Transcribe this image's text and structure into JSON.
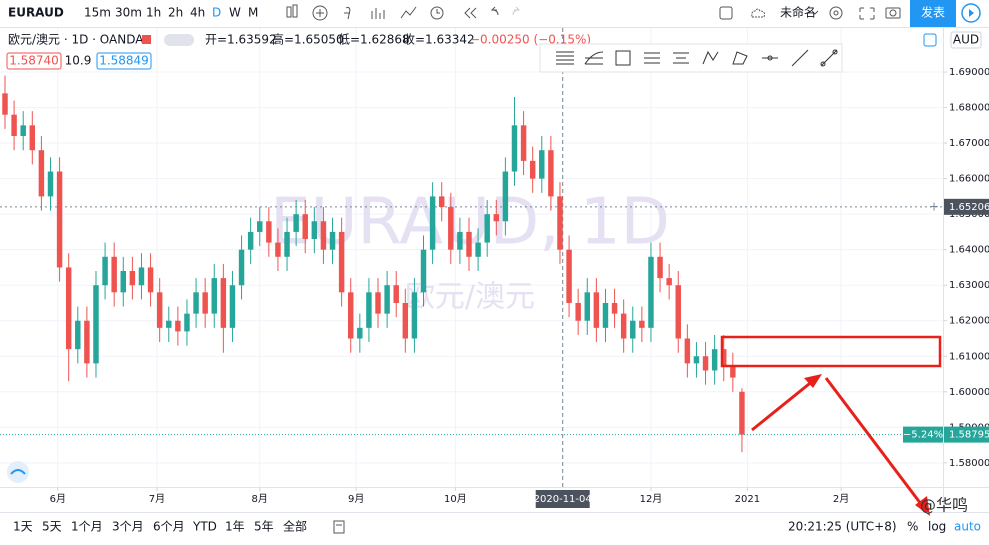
{
  "toolbar": {
    "symbol": "EURAUD",
    "intervals": [
      "15m",
      "30m",
      "1h",
      "2h",
      "4h",
      "D",
      "W",
      "M"
    ],
    "layout_name": "未命名",
    "publish": "发表"
  },
  "legend": {
    "instrument": "欧元/澳元 · 1D · OANDA",
    "open": "开=1.63592",
    "high": "高=1.65050",
    "low": "低=1.62868",
    "close": "收=1.63342",
    "change": "−0.00250 (−0.15%)",
    "bid": "1.58740",
    "spread": "10.9",
    "ask": "1.58849"
  },
  "currency": "AUD",
  "chart_data": {
    "type": "candlestick",
    "watermark": "EURAUD, 1D",
    "watermark_sub": "欧元/澳元",
    "up_color": "#26a69a",
    "down_color": "#ef5350",
    "open": [
      1.684,
      1.678,
      1.672,
      1.675,
      1.668,
      1.655,
      1.662,
      1.635,
      1.612,
      1.62,
      1.608,
      1.63,
      1.638,
      1.628,
      1.634,
      1.63,
      1.635,
      1.628,
      1.618,
      1.62,
      1.617,
      1.622,
      1.628,
      1.622,
      1.632,
      1.618,
      1.63,
      1.64,
      1.645,
      1.648,
      1.642,
      1.638,
      1.645,
      1.65,
      1.643,
      1.648,
      1.64,
      1.645,
      1.628,
      1.615,
      1.618,
      1.628,
      1.622,
      1.63,
      1.625,
      1.615,
      1.628,
      1.64,
      1.655,
      1.652,
      1.64,
      1.645,
      1.638,
      1.642,
      1.65,
      1.648,
      1.662,
      1.675,
      1.665,
      1.66,
      1.668,
      1.655,
      1.64,
      1.625,
      1.62,
      1.628,
      1.618,
      1.625,
      1.622,
      1.615,
      1.62,
      1.618,
      1.638,
      1.632,
      1.63,
      1.615,
      1.608,
      1.61,
      1.606,
      1.612,
      1.607,
      1.6
    ],
    "high": [
      1.689,
      1.682,
      1.679,
      1.679,
      1.672,
      1.666,
      1.666,
      1.639,
      1.624,
      1.624,
      1.634,
      1.642,
      1.642,
      1.638,
      1.638,
      1.639,
      1.639,
      1.632,
      1.624,
      1.624,
      1.626,
      1.632,
      1.632,
      1.636,
      1.636,
      1.634,
      1.644,
      1.649,
      1.652,
      1.652,
      1.646,
      1.649,
      1.654,
      1.654,
      1.652,
      1.652,
      1.649,
      1.649,
      1.632,
      1.622,
      1.632,
      1.632,
      1.634,
      1.634,
      1.629,
      1.632,
      1.644,
      1.659,
      1.659,
      1.656,
      1.649,
      1.649,
      1.646,
      1.654,
      1.654,
      1.666,
      1.683,
      1.679,
      1.669,
      1.672,
      1.672,
      1.659,
      1.644,
      1.629,
      1.632,
      1.632,
      1.629,
      1.629,
      1.626,
      1.624,
      1.624,
      1.642,
      1.642,
      1.636,
      1.634,
      1.619,
      1.614,
      1.614,
      1.616,
      1.616,
      1.611,
      1.601
    ],
    "low": [
      1.674,
      1.668,
      1.668,
      1.664,
      1.651,
      1.651,
      1.631,
      1.603,
      1.608,
      1.604,
      1.604,
      1.626,
      1.624,
      1.624,
      1.626,
      1.626,
      1.624,
      1.614,
      1.614,
      1.613,
      1.613,
      1.618,
      1.618,
      1.618,
      1.611,
      1.614,
      1.626,
      1.636,
      1.641,
      1.638,
      1.634,
      1.634,
      1.641,
      1.639,
      1.639,
      1.636,
      1.636,
      1.624,
      1.611,
      1.611,
      1.614,
      1.618,
      1.618,
      1.621,
      1.611,
      1.611,
      1.624,
      1.636,
      1.648,
      1.636,
      1.636,
      1.634,
      1.634,
      1.638,
      1.644,
      1.644,
      1.658,
      1.661,
      1.656,
      1.656,
      1.651,
      1.636,
      1.621,
      1.616,
      1.616,
      1.614,
      1.614,
      1.618,
      1.611,
      1.611,
      1.614,
      1.614,
      1.628,
      1.626,
      1.611,
      1.604,
      1.604,
      1.602,
      1.602,
      1.603,
      1.6,
      1.583
    ],
    "close": [
      1.678,
      1.672,
      1.675,
      1.668,
      1.655,
      1.662,
      1.635,
      1.612,
      1.62,
      1.608,
      1.63,
      1.638,
      1.628,
      1.634,
      1.63,
      1.635,
      1.628,
      1.618,
      1.62,
      1.617,
      1.622,
      1.628,
      1.622,
      1.632,
      1.618,
      1.63,
      1.64,
      1.645,
      1.648,
      1.642,
      1.638,
      1.645,
      1.65,
      1.643,
      1.648,
      1.64,
      1.645,
      1.628,
      1.615,
      1.618,
      1.628,
      1.622,
      1.63,
      1.625,
      1.615,
      1.628,
      1.64,
      1.655,
      1.652,
      1.64,
      1.645,
      1.638,
      1.642,
      1.65,
      1.648,
      1.662,
      1.675,
      1.665,
      1.66,
      1.668,
      1.655,
      1.64,
      1.625,
      1.62,
      1.628,
      1.618,
      1.625,
      1.622,
      1.615,
      1.62,
      1.618,
      1.638,
      1.632,
      1.63,
      1.615,
      1.608,
      1.61,
      1.606,
      1.612,
      1.607,
      1.604,
      1.58795
    ],
    "xlim": [
      -0.55,
      103.1
    ],
    "xticks": [
      {
        "value": 5.8,
        "label": "6月"
      },
      {
        "value": 16.7,
        "label": "7月"
      },
      {
        "value": 28,
        "label": "8月"
      },
      {
        "value": 38.6,
        "label": "9月"
      },
      {
        "value": 49.5,
        "label": "10月"
      },
      {
        "value": 71,
        "label": "12月"
      },
      {
        "value": 81.6,
        "label": "2021"
      },
      {
        "value": 91.9,
        "label": "2月"
      }
    ],
    "ylim": [
      1.5732,
      1.7024
    ],
    "yticks": [
      {
        "value": 1.58,
        "label": "1.58000"
      },
      {
        "value": 1.59,
        "label": "1.59000"
      },
      {
        "value": 1.6,
        "label": "1.60000"
      },
      {
        "value": 1.61,
        "label": "1.61000"
      },
      {
        "value": 1.62,
        "label": "1.62000"
      },
      {
        "value": 1.63,
        "label": "1.63000"
      },
      {
        "value": 1.64,
        "label": "1.64000"
      },
      {
        "value": 1.65,
        "label": "1.65000"
      },
      {
        "value": 1.66,
        "label": "1.66000"
      },
      {
        "value": 1.67,
        "label": "1.67000"
      },
      {
        "value": 1.68,
        "label": "1.68000"
      },
      {
        "value": 1.69,
        "label": "1.69000"
      }
    ],
    "crosshair_x": {
      "value": 61.3,
      "label": "2020-11-04"
    },
    "crosshair_y": 1.65206,
    "last_change_label": "−5.24%",
    "grid": true
  },
  "bottom_bar": {
    "ranges": [
      "1天",
      "5天",
      "1个月",
      "3个月",
      "6个月",
      "YTD",
      "1年",
      "5年",
      "全部"
    ],
    "clock": "20:21:25 (UTC+8)",
    "percent": "%",
    "log": "log",
    "auto": "auto"
  },
  "watermark": "@华鸣"
}
